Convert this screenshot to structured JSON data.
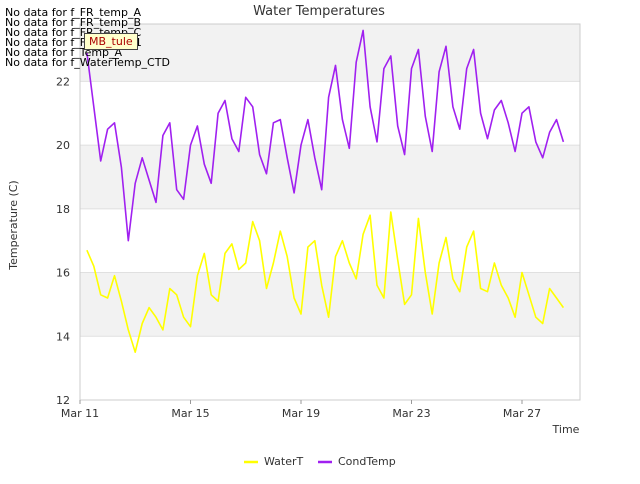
{
  "chart_data": {
    "type": "line",
    "title": "Water Temperatures",
    "xlabel": "Time",
    "ylabel": "Temperature (C)",
    "ylim": [
      12,
      23.8
    ],
    "xlim_days": [
      "Mar 11",
      "Mar 29"
    ],
    "x_ticks": [
      "Mar 11",
      "Mar 15",
      "Mar 19",
      "Mar 23",
      "Mar 27"
    ],
    "y_ticks": [
      12,
      14,
      16,
      18,
      20,
      22
    ],
    "grid": true,
    "legend_position": "bottom-center",
    "no_data_messages": [
      "No data for f_FR_temp_A",
      "No data for f_FR_temp_B",
      "No data for f_FR_temp_C",
      "No data for f_FD_Temp_1",
      "No data for f_Temp_A",
      "No data for f_WaterTemp_CTD"
    ],
    "tooltip_label": "MB_tule",
    "series": [
      {
        "name": "WaterT",
        "color": "#ffff00",
        "x": [
          "Mar 11 06:00",
          "Mar 11 12:00",
          "Mar 11 18:00",
          "Mar 12 00:00",
          "Mar 12 06:00",
          "Mar 12 12:00",
          "Mar 12 18:00",
          "Mar 13 00:00",
          "Mar 13 06:00",
          "Mar 13 12:00",
          "Mar 13 18:00",
          "Mar 14 00:00",
          "Mar 14 06:00",
          "Mar 14 12:00",
          "Mar 14 18:00",
          "Mar 15 00:00",
          "Mar 15 06:00",
          "Mar 15 12:00",
          "Mar 15 18:00",
          "Mar 16 00:00",
          "Mar 16 06:00",
          "Mar 16 12:00",
          "Mar 16 18:00",
          "Mar 17 00:00",
          "Mar 17 06:00",
          "Mar 17 12:00",
          "Mar 17 18:00",
          "Mar 18 00:00",
          "Mar 18 06:00",
          "Mar 18 12:00",
          "Mar 18 18:00",
          "Mar 19 00:00",
          "Mar 19 06:00",
          "Mar 19 12:00",
          "Mar 19 18:00",
          "Mar 20 00:00",
          "Mar 20 06:00",
          "Mar 20 12:00",
          "Mar 20 18:00",
          "Mar 21 00:00",
          "Mar 21 06:00",
          "Mar 21 12:00",
          "Mar 21 18:00",
          "Mar 22 00:00",
          "Mar 22 06:00",
          "Mar 22 12:00",
          "Mar 22 18:00",
          "Mar 23 00:00",
          "Mar 23 06:00",
          "Mar 23 12:00",
          "Mar 23 18:00",
          "Mar 24 00:00",
          "Mar 24 06:00",
          "Mar 24 12:00",
          "Mar 24 18:00",
          "Mar 25 00:00",
          "Mar 25 06:00",
          "Mar 25 12:00",
          "Mar 25 18:00",
          "Mar 26 00:00",
          "Mar 26 06:00",
          "Mar 26 12:00",
          "Mar 26 18:00",
          "Mar 27 00:00",
          "Mar 27 06:00",
          "Mar 27 12:00",
          "Mar 27 18:00",
          "Mar 28 00:00",
          "Mar 28 06:00",
          "Mar 28 12:00"
        ],
        "values": [
          16.7,
          16.2,
          15.3,
          15.2,
          15.9,
          15.1,
          14.2,
          13.5,
          14.4,
          14.9,
          14.6,
          14.2,
          15.5,
          15.3,
          14.6,
          14.3,
          15.9,
          16.6,
          15.3,
          15.1,
          16.6,
          16.9,
          16.1,
          16.3,
          17.6,
          17.0,
          15.5,
          16.3,
          17.3,
          16.5,
          15.2,
          14.7,
          16.8,
          17.0,
          15.6,
          14.6,
          16.5,
          17.0,
          16.3,
          15.8,
          17.2,
          17.8,
          15.6,
          15.2,
          17.9,
          16.4,
          15.0,
          15.3,
          17.7,
          16.0,
          14.7,
          16.3,
          17.1,
          15.8,
          15.4,
          16.8,
          17.3,
          15.5,
          15.4,
          16.3,
          15.6,
          15.2,
          14.6,
          16.0,
          15.3,
          14.6,
          14.4,
          15.5,
          15.2,
          14.9
        ]
      },
      {
        "name": "CondTemp",
        "color": "#a020f0",
        "x": [
          "Mar 11 06:00",
          "Mar 11 12:00",
          "Mar 11 18:00",
          "Mar 12 00:00",
          "Mar 12 06:00",
          "Mar 12 12:00",
          "Mar 12 18:00",
          "Mar 13 00:00",
          "Mar 13 06:00",
          "Mar 13 12:00",
          "Mar 13 18:00",
          "Mar 14 00:00",
          "Mar 14 06:00",
          "Mar 14 12:00",
          "Mar 14 18:00",
          "Mar 15 00:00",
          "Mar 15 06:00",
          "Mar 15 12:00",
          "Mar 15 18:00",
          "Mar 16 00:00",
          "Mar 16 06:00",
          "Mar 16 12:00",
          "Mar 16 18:00",
          "Mar 17 00:00",
          "Mar 17 06:00",
          "Mar 17 12:00",
          "Mar 17 18:00",
          "Mar 18 00:00",
          "Mar 18 06:00",
          "Mar 18 12:00",
          "Mar 18 18:00",
          "Mar 19 00:00",
          "Mar 19 06:00",
          "Mar 19 12:00",
          "Mar 19 18:00",
          "Mar 20 00:00",
          "Mar 20 06:00",
          "Mar 20 12:00",
          "Mar 20 18:00",
          "Mar 21 00:00",
          "Mar 21 06:00",
          "Mar 21 12:00",
          "Mar 21 18:00",
          "Mar 22 00:00",
          "Mar 22 06:00",
          "Mar 22 12:00",
          "Mar 22 18:00",
          "Mar 23 00:00",
          "Mar 23 06:00",
          "Mar 23 12:00",
          "Mar 23 18:00",
          "Mar 24 00:00",
          "Mar 24 06:00",
          "Mar 24 12:00",
          "Mar 24 18:00",
          "Mar 25 00:00",
          "Mar 25 06:00",
          "Mar 25 12:00",
          "Mar 25 18:00",
          "Mar 26 00:00",
          "Mar 26 06:00",
          "Mar 26 12:00",
          "Mar 26 18:00",
          "Mar 27 00:00",
          "Mar 27 06:00",
          "Mar 27 12:00",
          "Mar 27 18:00",
          "Mar 28 00:00",
          "Mar 28 06:00",
          "Mar 28 12:00"
        ],
        "values": [
          22.9,
          21.2,
          19.5,
          20.5,
          20.7,
          19.3,
          17.0,
          18.8,
          19.6,
          18.9,
          18.2,
          20.3,
          20.7,
          18.6,
          18.3,
          20.0,
          20.6,
          19.4,
          18.8,
          21.0,
          21.4,
          20.2,
          19.8,
          21.5,
          21.2,
          19.7,
          19.1,
          20.7,
          20.8,
          19.6,
          18.5,
          20.0,
          20.8,
          19.6,
          18.6,
          21.5,
          22.5,
          20.8,
          19.9,
          22.6,
          23.6,
          21.2,
          20.1,
          22.4,
          22.8,
          20.6,
          19.7,
          22.4,
          23.0,
          20.9,
          19.8,
          22.3,
          23.1,
          21.2,
          20.5,
          22.4,
          23.0,
          21.0,
          20.2,
          21.1,
          21.4,
          20.7,
          19.8,
          21.0,
          21.2,
          20.1,
          19.6,
          20.4,
          20.8,
          20.1
        ]
      }
    ]
  }
}
